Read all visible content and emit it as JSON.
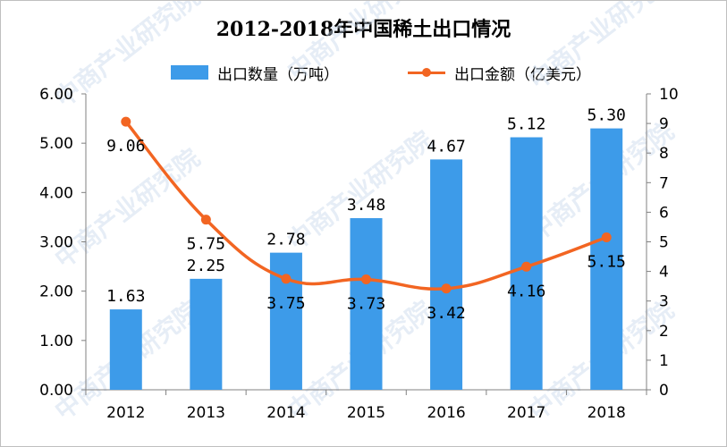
{
  "chart_data": {
    "type": "bar",
    "title": "2012-2018年中国稀土出口情况",
    "categories": [
      "2012",
      "2013",
      "2014",
      "2015",
      "2016",
      "2017",
      "2018"
    ],
    "series": [
      {
        "name": "出口数量（万吨）",
        "type": "bar",
        "axis": "left",
        "values": [
          1.63,
          2.25,
          2.78,
          3.48,
          4.67,
          5.12,
          5.3
        ],
        "labels": [
          "1.63",
          "2.25",
          "2.78",
          "3.48",
          "4.67",
          "5.12",
          "5.30"
        ],
        "color": "#3d9be9"
      },
      {
        "name": "出口金额（亿美元）",
        "type": "line",
        "axis": "right",
        "values": [
          9.06,
          5.75,
          3.75,
          3.73,
          3.42,
          4.16,
          5.15
        ],
        "labels": [
          "9.06",
          "5.75",
          "3.75",
          "3.73",
          "3.42",
          "4.16",
          "5.15"
        ],
        "color": "#f26522"
      }
    ],
    "ylim_left": [
      0,
      6
    ],
    "ylim_right": [
      0,
      10
    ],
    "yticks_left": [
      "0.00",
      "1.00",
      "2.00",
      "3.00",
      "4.00",
      "5.00",
      "6.00"
    ],
    "yticks_right": [
      "0",
      "1",
      "2",
      "3",
      "4",
      "5",
      "6",
      "7",
      "8",
      "9",
      "10"
    ],
    "grid": false,
    "legend": "top"
  },
  "watermark": "中商产业研究院"
}
